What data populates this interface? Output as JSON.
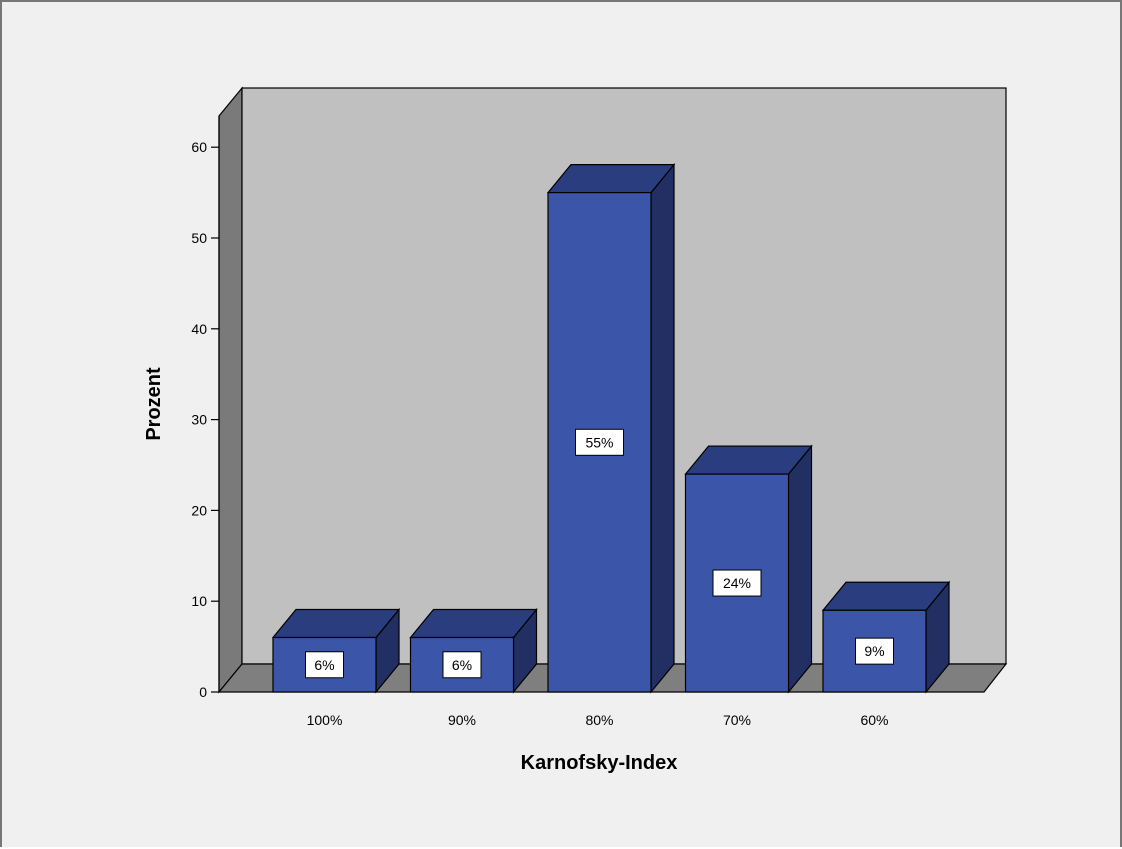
{
  "chart_data": {
    "type": "bar",
    "categories": [
      "100%",
      "90%",
      "80%",
      "70%",
      "60%"
    ],
    "values": [
      6,
      6,
      55,
      24,
      9
    ],
    "data_labels": [
      "6%",
      "6%",
      "55%",
      "24%",
      "9%"
    ],
    "xlabel": "Karnofsky-Index",
    "ylabel": "Prozent",
    "ylim": [
      0,
      60
    ],
    "yticks": [
      "0",
      "10",
      "20",
      "30",
      "40",
      "50",
      "60"
    ],
    "grid": false,
    "colors": {
      "bar_front": "#3b55a8",
      "bar_top": "#2a3d7f",
      "bar_side": "#222f63",
      "back_wall": "#c0c0c0",
      "side_wall": "#7a7a7a",
      "floor": "#7f7f7f",
      "frame_bg": "#f0f0f0"
    }
  }
}
